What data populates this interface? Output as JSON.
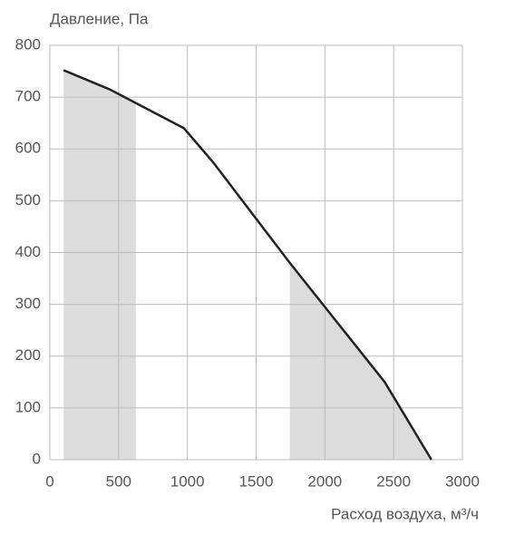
{
  "chart_data": {
    "type": "line",
    "y_label": "Давление, Па",
    "x_label": "Расход воздуха, м³/ч",
    "x": [
      100,
      435,
      975,
      1185,
      1745,
      2435,
      2775
    ],
    "values": [
      752,
      715,
      640,
      575,
      380,
      150,
      0
    ],
    "color": "#222222",
    "shaded_ranges": [
      [
        100,
        625
      ],
      [
        1745,
        2775
      ]
    ],
    "shade_color": "#dcdcdc",
    "xlim": [
      0,
      3000
    ],
    "xticks": [
      0,
      500,
      1000,
      1500,
      2000,
      2500,
      3000
    ],
    "ylim": [
      0,
      800
    ],
    "yticks": [
      0,
      100,
      200,
      300,
      400,
      500,
      600,
      700,
      800
    ],
    "grid": true
  }
}
